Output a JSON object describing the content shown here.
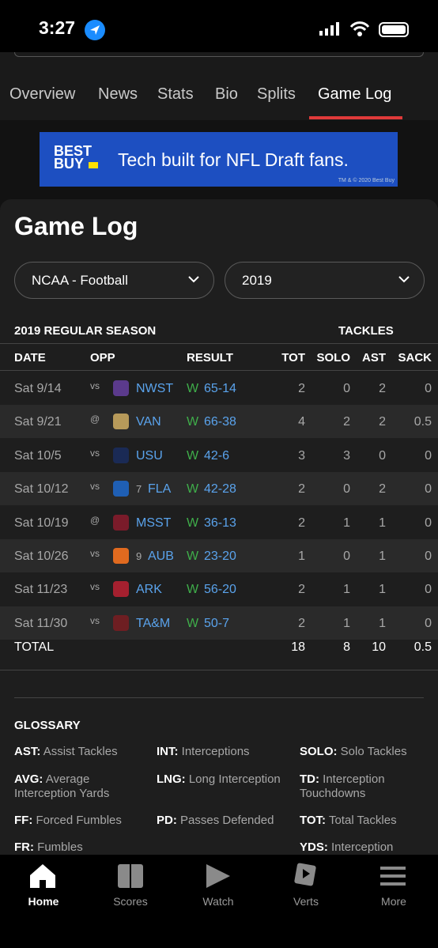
{
  "status_bar": {
    "time": "3:27"
  },
  "tabs": [
    "Overview",
    "News",
    "Stats",
    "Bio",
    "Splits",
    "Game Log"
  ],
  "ad": {
    "brand_line1": "BEST",
    "brand_line2": "BUY",
    "text": "Tech built for NFL Draft fans.",
    "fine_print": "TM & © 2020 Best Buy"
  },
  "section_title": "Game Log",
  "filters": [
    "NCAA - Football",
    "2019"
  ],
  "table": {
    "season_label": "2019 REGULAR SEASON",
    "group_label": "TACKLES",
    "columns": [
      "DATE",
      "OPP",
      "RESULT",
      "TOT",
      "SOLO",
      "AST",
      "SACK"
    ],
    "rows": [
      {
        "date": "Sat 9/14",
        "venue": "vs",
        "opp": "NWST",
        "outcome": "W",
        "score": "65-14",
        "tot": 2,
        "solo": 0,
        "ast": 2,
        "sack": 0
      },
      {
        "date": "Sat 9/21",
        "venue": "@",
        "opp": "VAN",
        "outcome": "W",
        "score": "66-38",
        "tot": 4,
        "solo": 2,
        "ast": 2,
        "sack": 0.5
      },
      {
        "date": "Sat 10/5",
        "venue": "vs",
        "opp": "USU",
        "outcome": "W",
        "score": "42-6",
        "tot": 3,
        "solo": 3,
        "ast": 0,
        "sack": 0
      },
      {
        "date": "Sat 10/12",
        "venue": "vs",
        "rank": 7,
        "opp": "FLA",
        "outcome": "W",
        "score": "42-28",
        "tot": 2,
        "solo": 0,
        "ast": 2,
        "sack": 0
      },
      {
        "date": "Sat 10/19",
        "venue": "@",
        "opp": "MSST",
        "outcome": "W",
        "score": "36-13",
        "tot": 2,
        "solo": 1,
        "ast": 1,
        "sack": 0
      },
      {
        "date": "Sat 10/26",
        "venue": "vs",
        "rank": 9,
        "opp": "AUB",
        "outcome": "W",
        "score": "23-20",
        "tot": 1,
        "solo": 0,
        "ast": 1,
        "sack": 0
      },
      {
        "date": "Sat 11/23",
        "venue": "vs",
        "opp": "ARK",
        "outcome": "W",
        "score": "56-20",
        "tot": 2,
        "solo": 1,
        "ast": 1,
        "sack": 0
      },
      {
        "date": "Sat 11/30",
        "venue": "vs",
        "opp": "TA&M",
        "outcome": "W",
        "score": "50-7",
        "tot": 2,
        "solo": 1,
        "ast": 1,
        "sack": 0
      }
    ],
    "total": {
      "label": "TOTAL",
      "tot": 18,
      "solo": 8,
      "ast": 10,
      "sack": 0.5
    }
  },
  "glossary": {
    "title": "GLOSSARY",
    "columns": [
      [
        {
          "term": "AST:",
          "desc": "Assist Tackles"
        },
        {
          "term": "AVG:",
          "desc": "Average Interception Yards"
        },
        {
          "term": "FF:",
          "desc": "Forced Fumbles"
        },
        {
          "term": "FR:",
          "desc": "Fumbles"
        }
      ],
      [
        {
          "term": "INT:",
          "desc": "Interceptions"
        },
        {
          "term": "LNG:",
          "desc": "Long Interception"
        },
        {
          "term": "PD:",
          "desc": "Passes Defended"
        }
      ],
      [
        {
          "term": "SOLO:",
          "desc": "Solo Tackles"
        },
        {
          "term": "TD:",
          "desc": "Interception Touchdowns"
        },
        {
          "term": "TOT:",
          "desc": "Total Tackles"
        },
        {
          "term": "YDS:",
          "desc": "Interception"
        }
      ]
    ]
  },
  "nav": [
    "Home",
    "Scores",
    "Watch",
    "Verts",
    "More"
  ]
}
